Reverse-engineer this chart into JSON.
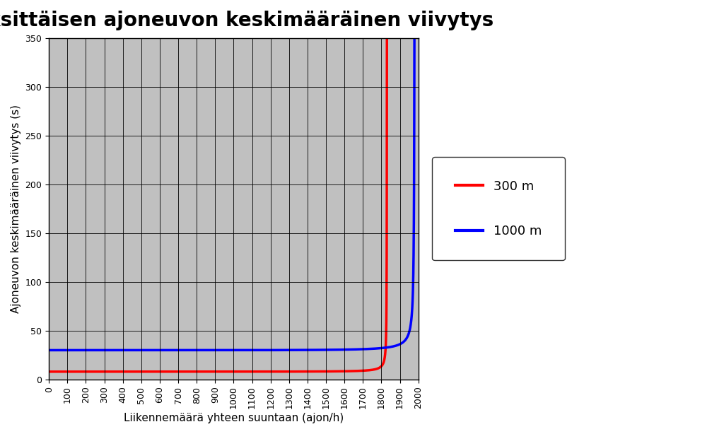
{
  "title": "Yksittäisen ajoneuvon keskimääräinen viivytys",
  "xlabel": "Liikennemäärä yhteen suuntaan (ajon/h)",
  "ylabel": "Ajoneuvon keskimääräinen viivytys (s)",
  "xlim": [
    0,
    2000
  ],
  "ylim": [
    0,
    350
  ],
  "xticks": [
    0,
    100,
    200,
    300,
    400,
    500,
    600,
    700,
    800,
    900,
    1000,
    1100,
    1200,
    1300,
    1400,
    1500,
    1600,
    1700,
    1800,
    1900,
    2000
  ],
  "yticks": [
    0,
    50,
    100,
    150,
    200,
    250,
    300,
    350
  ],
  "plot_bg_color": "#c0c0c0",
  "outer_bg_color": "#ffffff",
  "grid_color": "#000000",
  "red_label": "300 m",
  "blue_label": "1000 m",
  "red_color": "#ff0000",
  "blue_color": "#0000ff",
  "line_width": 2.5,
  "title_fontsize": 20,
  "axis_label_fontsize": 11,
  "tick_fontsize": 9,
  "legend_fontsize": 13,
  "figsize": [
    10.24,
    6.14
  ],
  "dpi": 100
}
